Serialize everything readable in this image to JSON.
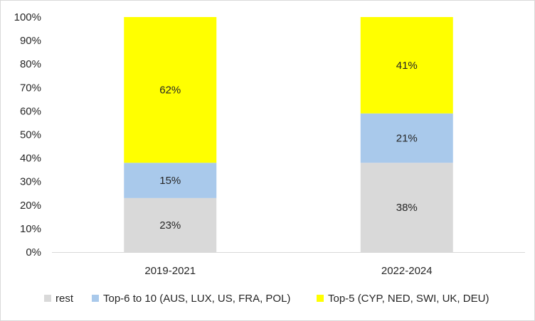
{
  "chart_data": {
    "type": "bar",
    "stacked": true,
    "percent_stacked": true,
    "categories": [
      "2019-2021",
      "2022-2024"
    ],
    "series": [
      {
        "name": "rest",
        "values": [
          23,
          38
        ],
        "labels": [
          "23%",
          "38%"
        ],
        "color": "#d9d9d9"
      },
      {
        "name": "Top-6 to 10 (AUS, LUX, US, FRA, POL)",
        "values": [
          15,
          21
        ],
        "labels": [
          "15%",
          "21%"
        ],
        "color": "#a9c9eb"
      },
      {
        "name": "Top-5 (CYP, NED, SWI, UK, DEU)",
        "values": [
          62,
          41
        ],
        "labels": [
          "62%",
          "41%"
        ],
        "color": "#ffff00"
      }
    ],
    "y_ticks": [
      "0%",
      "10%",
      "20%",
      "30%",
      "40%",
      "50%",
      "60%",
      "70%",
      "80%",
      "90%",
      "100%"
    ],
    "ylim": [
      0,
      100
    ],
    "grid": false,
    "legend_position": "bottom"
  }
}
